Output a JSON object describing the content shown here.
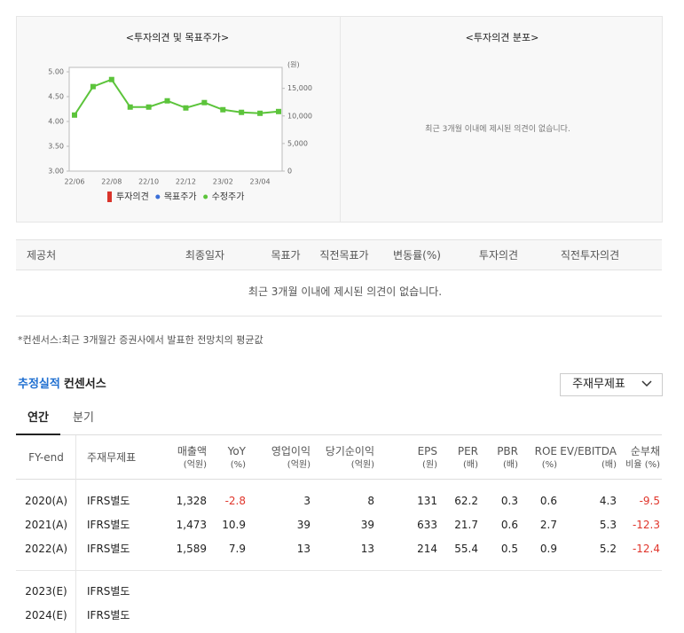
{
  "left_panel": {
    "title": "<투자의견 및 목표주가>"
  },
  "chart_data": {
    "type": "line",
    "categories": [
      "22/06",
      null,
      "22/08",
      null,
      "22/10",
      null,
      "22/12",
      null,
      "23/02",
      null,
      "23/04",
      null
    ],
    "ylim": [
      3,
      5
    ],
    "yticks": [
      {
        "value": 3,
        "label": "3.00"
      },
      {
        "value": 3.5,
        "label": "3.50"
      },
      {
        "value": 4,
        "label": "4.00"
      },
      {
        "value": 4.5,
        "label": "4.50"
      },
      {
        "value": 5,
        "label": "5.00"
      }
    ],
    "y2lim": [
      0,
      18000
    ],
    "y2ticks": [
      0,
      {
        "value": 5000,
        "label": "5,000"
      },
      {
        "value": 10000,
        "label": "10,000"
      },
      {
        "value": 15000,
        "label": "15,000"
      }
    ],
    "y2_unit": "(원)",
    "series": [
      {
        "name": "투자의견",
        "color": "#d9342b",
        "marker": "bar",
        "values": [
          null,
          null,
          null,
          null,
          null,
          null,
          null,
          null,
          null,
          null,
          null,
          null
        ]
      },
      {
        "name": "목표주가",
        "color": "#3a6fd8",
        "marker": "dot",
        "axis": "y2",
        "values": [
          null,
          null,
          null,
          null,
          null,
          null,
          null,
          null,
          null,
          null,
          null,
          null
        ]
      },
      {
        "name": "수정주가",
        "color": "#5cc43b",
        "marker": "dot",
        "axis": "y2",
        "values": [
          10160,
          15320,
          16600,
          11610,
          11610,
          12740,
          11450,
          12420,
          11130,
          10650,
          10480,
          10800
        ]
      }
    ]
  },
  "right_panel": {
    "title": "<투자의견 분포>",
    "message": "최근 3개월 이내에 제시된 의견이 없습니다."
  },
  "opinion_table": {
    "headers": [
      "제공처",
      "최종일자",
      "목표가",
      "직전목표가",
      "변동률(%)",
      "투자의견",
      "직전투자의견"
    ],
    "message": "최근 3개월 이내에 제시된 의견이 없습니다."
  },
  "note": "*컨센서스:최근 3개월간 증권사에서 발표한 전망치의 평균값",
  "consensus": {
    "title_highlight": "추정실적",
    "title": "컨센서스",
    "dropdown": "주재무제표",
    "tabs": [
      "연간",
      "분기"
    ],
    "headers": [
      [
        "FY-end"
      ],
      [
        "주재무제표"
      ],
      [
        "매출액",
        "(억원)"
      ],
      [
        "YoY",
        "(%)"
      ],
      [
        "영업이익",
        "(억원)"
      ],
      [
        "당기순이익",
        "(억원)"
      ],
      [
        "EPS",
        "(원)"
      ],
      [
        "PER",
        "(배)"
      ],
      [
        "PBR",
        "(배)"
      ],
      [
        "ROE",
        "(%)"
      ],
      [
        "EV/EBITDA",
        "(배)"
      ],
      [
        "순부채",
        "비율 (%)"
      ]
    ],
    "rows": [
      [
        "2020(A)",
        "IFRS별도",
        "1,328",
        "-2.8",
        "3",
        "8",
        "131",
        "62.2",
        "0.3",
        "0.6",
        "4.3",
        "-9.5"
      ],
      [
        "2021(A)",
        "IFRS별도",
        "1,473",
        "10.9",
        "39",
        "39",
        "633",
        "21.7",
        "0.6",
        "2.7",
        "5.3",
        "-12.3"
      ],
      [
        "2022(A)",
        "IFRS별도",
        "1,589",
        "7.9",
        "13",
        "13",
        "214",
        "55.4",
        "0.5",
        "0.9",
        "5.2",
        "-12.4"
      ],
      [
        "2023(E)",
        "IFRS별도"
      ],
      [
        "2024(E)",
        "IFRS별도"
      ]
    ]
  }
}
